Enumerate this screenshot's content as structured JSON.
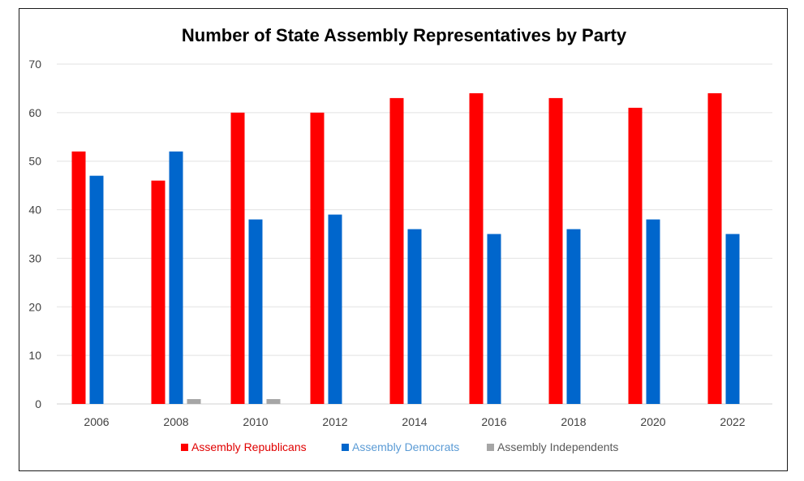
{
  "chart_data": {
    "type": "bar",
    "title": "Number of State Assembly Representatives by Party",
    "xlabel": "",
    "ylabel": "",
    "categories": [
      "2006",
      "2008",
      "2010",
      "2012",
      "2014",
      "2016",
      "2018",
      "2020",
      "2022"
    ],
    "ylim": [
      0,
      70
    ],
    "yticks": [
      0,
      10,
      20,
      30,
      40,
      50,
      60,
      70
    ],
    "grid": true,
    "legend_position": "bottom",
    "series": [
      {
        "name": "Assembly Republicans",
        "color": "#ff0000",
        "legend_text_color": "#e00000",
        "values": [
          52,
          46,
          60,
          60,
          63,
          64,
          63,
          61,
          64
        ]
      },
      {
        "name": "Assembly Democrats",
        "color": "#0066cc",
        "legend_text_color": "#5b9bd5",
        "values": [
          47,
          52,
          38,
          39,
          36,
          35,
          36,
          38,
          35
        ]
      },
      {
        "name": "Assembly Independents",
        "color": "#a6a6a6",
        "legend_text_color": "#595959",
        "values": [
          0,
          1,
          1,
          0,
          0,
          0,
          0,
          0,
          0
        ]
      }
    ]
  }
}
